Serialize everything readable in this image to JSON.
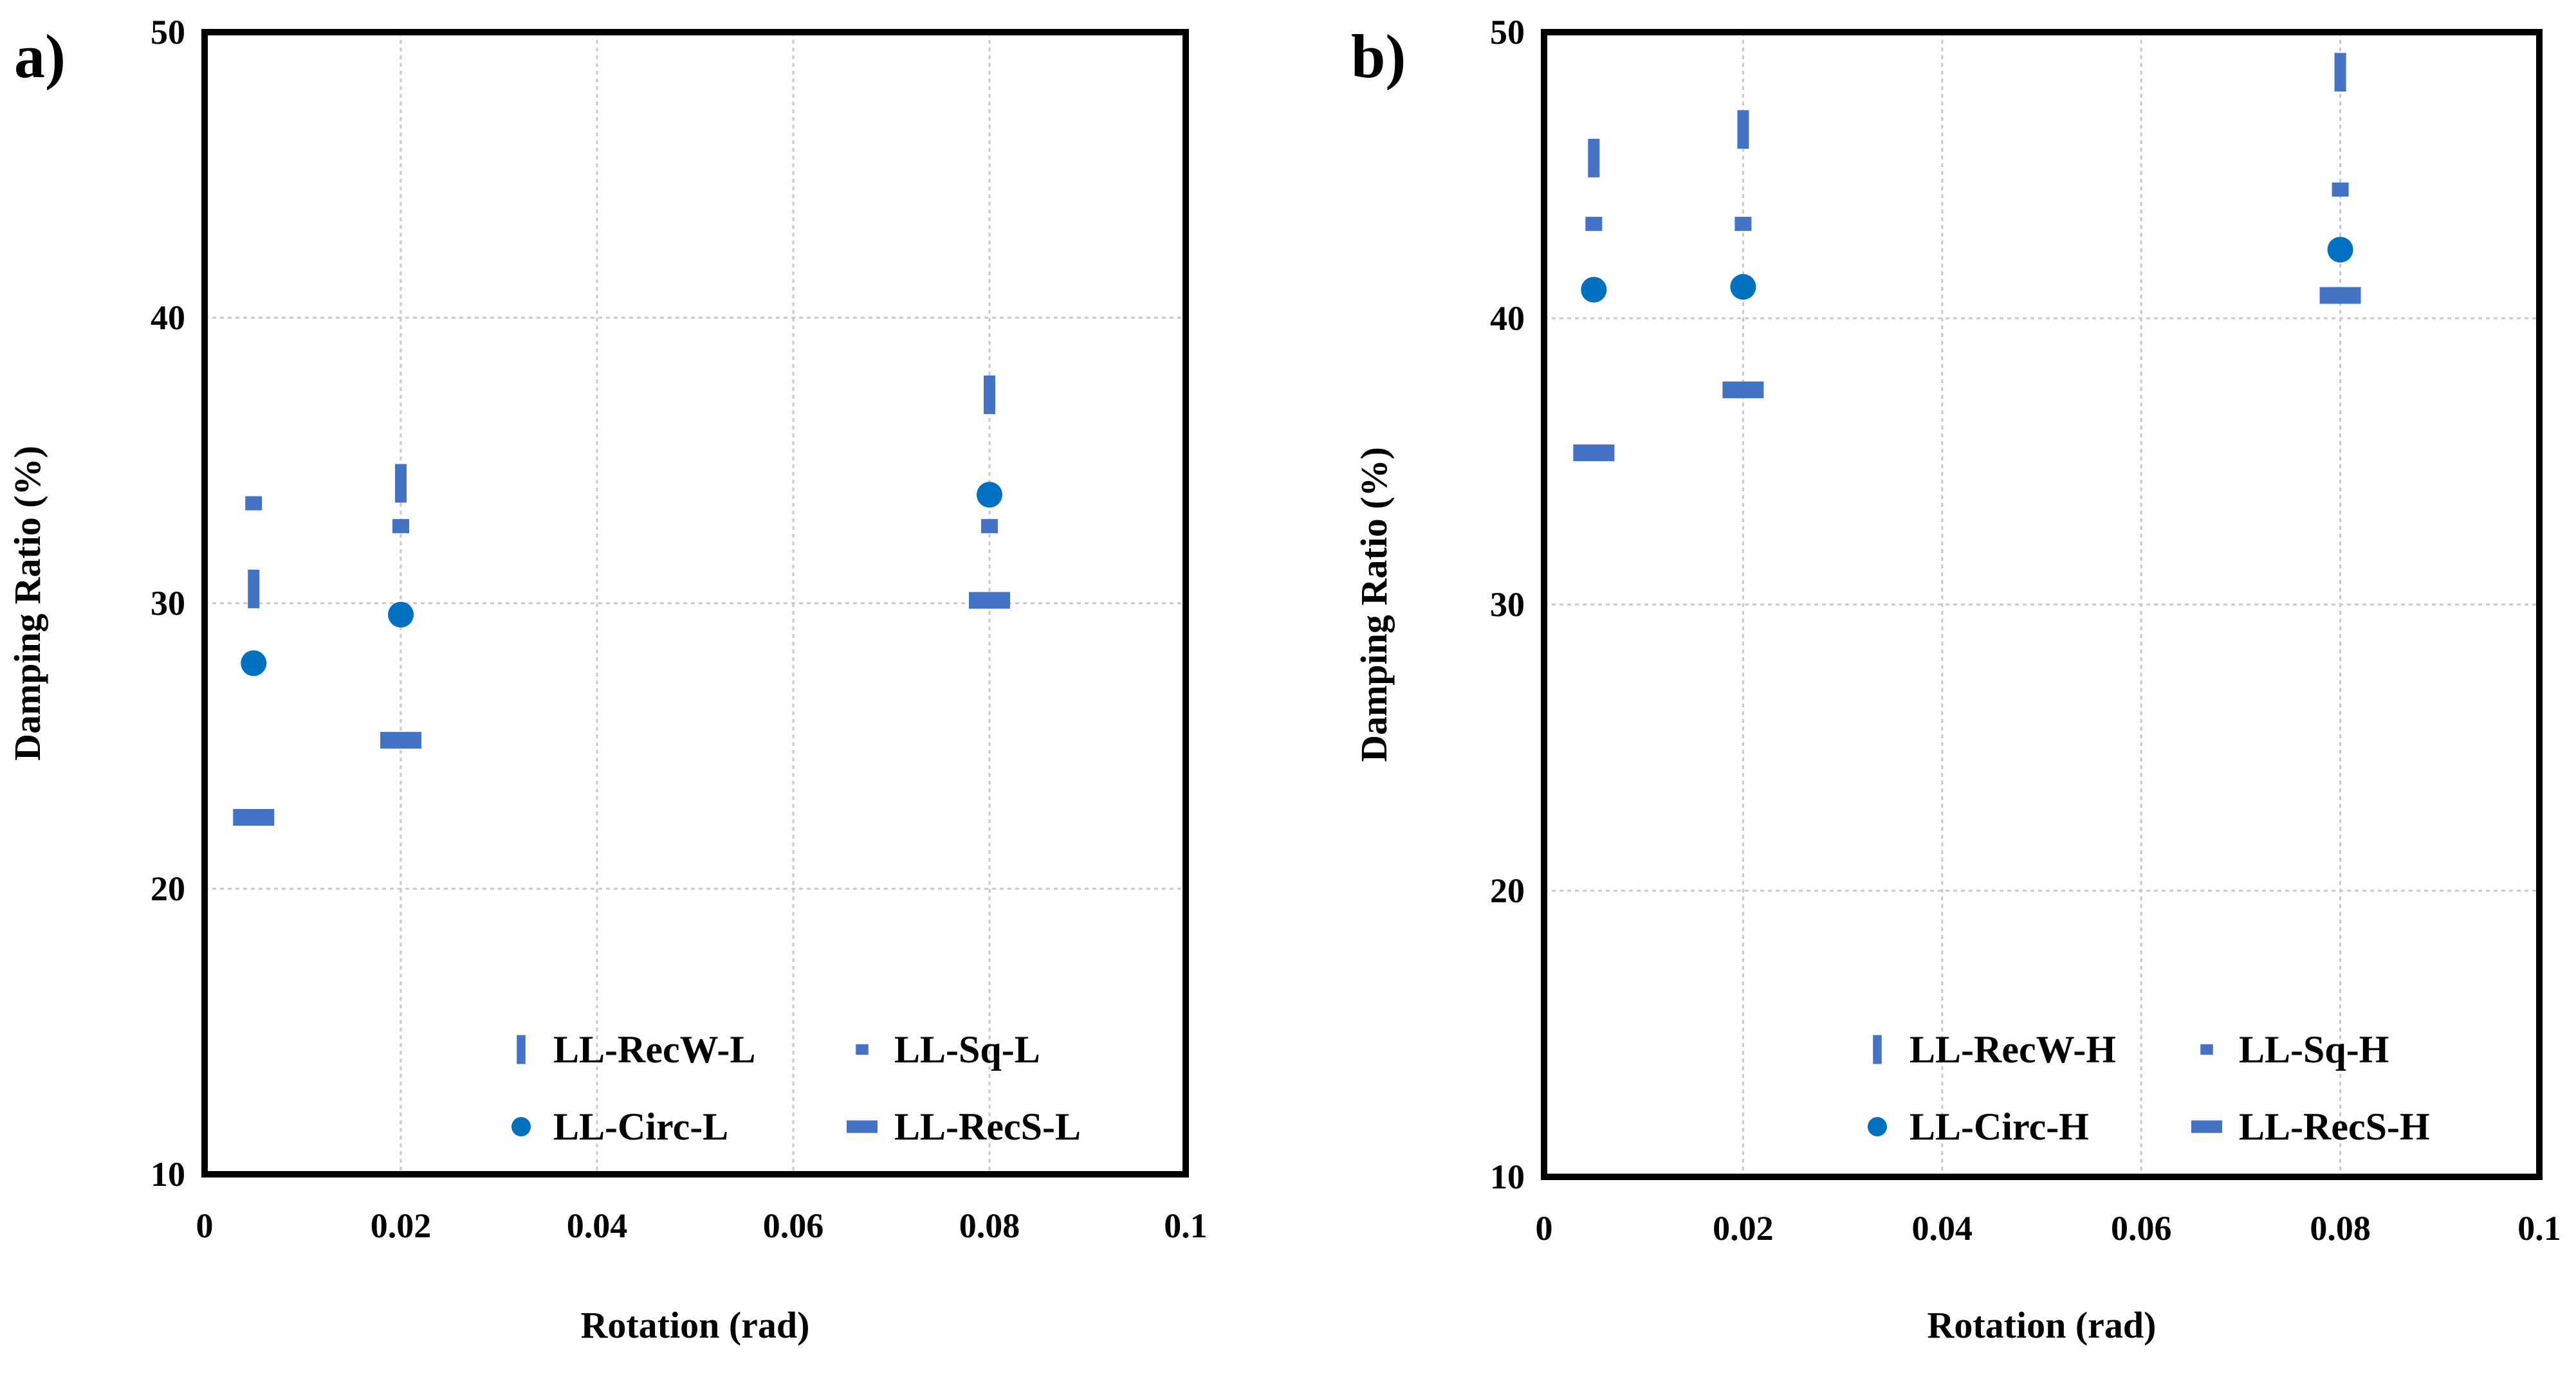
{
  "chart_data": [
    {
      "type": "scatter",
      "panel_label": "a)",
      "xlabel": "Rotation (rad)",
      "ylabel": "Damping Ratio (%)",
      "xlim": [
        0,
        0.1
      ],
      "ylim": [
        10,
        50
      ],
      "x_ticks": [
        "0",
        "0.02",
        "0.04",
        "0.06",
        "0.08",
        "0.1"
      ],
      "y_ticks": [
        "10",
        "20",
        "30",
        "40",
        "50"
      ],
      "grid": true,
      "legend_position": "bottom-right",
      "series": [
        {
          "name": "LL-RecW-L",
          "marker": "vbar",
          "color": "#4472C4",
          "x": [
            0.005,
            0.02,
            0.08
          ],
          "y": [
            30.5,
            34.2,
            37.3
          ]
        },
        {
          "name": "LL-Sq-L",
          "marker": "square",
          "color": "#4472C4",
          "x": [
            0.005,
            0.02,
            0.08
          ],
          "y": [
            33.5,
            32.7,
            32.7
          ]
        },
        {
          "name": "LL-Circ-L",
          "marker": "circle",
          "color": "#0070C0",
          "x": [
            0.005,
            0.02,
            0.08
          ],
          "y": [
            27.9,
            29.6,
            33.8
          ]
        },
        {
          "name": "LL-RecS-L",
          "marker": "hbar",
          "color": "#4472C4",
          "x": [
            0.005,
            0.02,
            0.08
          ],
          "y": [
            22.5,
            25.2,
            30.1
          ]
        }
      ]
    },
    {
      "type": "scatter",
      "panel_label": "b)",
      "xlabel": "Rotation (rad)",
      "ylabel": "Damping Ratio (%)",
      "xlim": [
        0,
        0.1
      ],
      "ylim": [
        10,
        50
      ],
      "x_ticks": [
        "0",
        "0.02",
        "0.04",
        "0.06",
        "0.08",
        "0.1"
      ],
      "y_ticks": [
        "10",
        "20",
        "30",
        "40",
        "50"
      ],
      "grid": true,
      "legend_position": "bottom-right",
      "series": [
        {
          "name": "LL-RecW-H",
          "marker": "vbar",
          "color": "#4472C4",
          "x": [
            0.005,
            0.02,
            0.08
          ],
          "y": [
            45.6,
            46.6,
            48.6
          ]
        },
        {
          "name": "LL-Sq-H",
          "marker": "square",
          "color": "#4472C4",
          "x": [
            0.005,
            0.02,
            0.08
          ],
          "y": [
            43.3,
            43.3,
            44.5
          ]
        },
        {
          "name": "LL-Circ-H",
          "marker": "circle",
          "color": "#0070C0",
          "x": [
            0.005,
            0.02,
            0.08
          ],
          "y": [
            41.0,
            41.1,
            42.4
          ]
        },
        {
          "name": "LL-RecS-H",
          "marker": "hbar",
          "color": "#4472C4",
          "x": [
            0.005,
            0.02,
            0.08
          ],
          "y": [
            35.3,
            37.5,
            40.8
          ]
        }
      ]
    }
  ]
}
